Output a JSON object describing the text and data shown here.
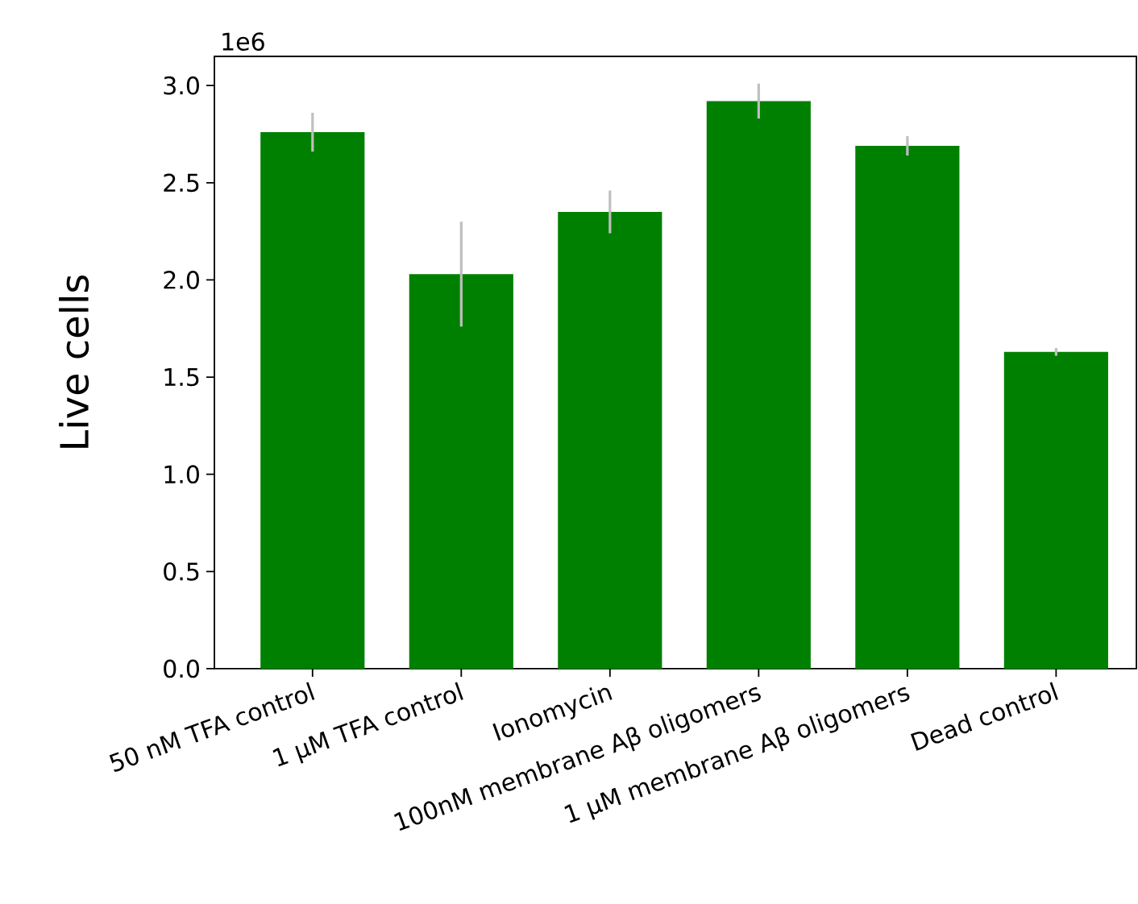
{
  "chart_data": {
    "type": "bar",
    "ylabel": "Live cells",
    "categories": [
      "50 nM TFA control",
      "1 μM TFA control",
      "Ionomycin",
      "100nM membrane Aβ oligomers",
      "1 μM membrane Aβ oligomers",
      "Dead control"
    ],
    "values": [
      2.76,
      2.03,
      2.35,
      2.92,
      2.69,
      1.63
    ],
    "errors": [
      0.1,
      0.27,
      0.11,
      0.09,
      0.05,
      0.02
    ],
    "color": "#008000",
    "ylim": [
      0,
      3.15
    ],
    "yticks": [
      {
        "value": 0,
        "label": "0.0"
      },
      0.5,
      {
        "value": 1,
        "label": "1.0"
      },
      1.5,
      {
        "value": 2,
        "label": "2.0"
      },
      2.5,
      {
        "value": 3,
        "label": "3.0"
      }
    ],
    "annotations": [
      "1e6"
    ]
  }
}
